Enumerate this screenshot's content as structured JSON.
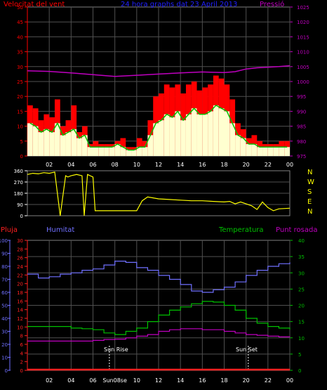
{
  "header": {
    "left_label": "Velocitat del vent",
    "title": "24 hora graphs dat 23 April 2013",
    "right_label": "Pressió"
  },
  "legend": {
    "rain": "Pluja",
    "humidity": "Humitat",
    "temperature": "Temperatura",
    "dewpoint": "Punt rosada"
  },
  "annotations": {
    "sunrise": "Sun Rise",
    "sunset": "Sun Set"
  },
  "colors": {
    "wind_speed": "#ff0000",
    "wind_avg": "#00c000",
    "wind_light": "#ffffd0",
    "pressure": "#c000c0",
    "direction": "#ffff00",
    "rain": "#ff2020",
    "humidity": "#7070ff",
    "temperature": "#00c000",
    "dewpoint": "#c000c0",
    "axis_left": "#ff0000",
    "axis_right": "#c000c0"
  },
  "chart_data": [
    {
      "type": "line",
      "title": "",
      "ylabel_left": "Velocitat del vent",
      "ylabel_right": "Pressió",
      "x_tick_labels": [
        "02",
        "04",
        "06",
        "08",
        "10",
        "12",
        "14",
        "16",
        "18",
        "20",
        "22",
        "00"
      ],
      "x_hours": [
        2,
        4,
        6,
        8,
        10,
        12,
        14,
        16,
        18,
        20,
        22,
        24
      ],
      "ylim_left": [
        0,
        50
      ],
      "yticks_left": [
        0,
        5,
        10,
        15,
        20,
        25,
        30,
        35,
        40,
        45,
        50
      ],
      "ylim_right": [
        975,
        1025
      ],
      "yticks_right": [
        975,
        980,
        985,
        990,
        995,
        1000,
        1005,
        1010,
        1015,
        1020,
        1025
      ],
      "series": [
        {
          "name": "Gust",
          "axis": "left",
          "x": [
            0.5,
            1,
            1.5,
            2,
            2.5,
            3,
            3.5,
            4,
            4.5,
            5,
            5.5,
            6,
            6.5,
            7,
            7.5,
            8,
            8.5,
            9,
            9.5,
            10,
            10.5,
            11,
            11.5,
            12,
            12.5,
            13,
            13.5,
            14,
            14.5,
            15,
            15.5,
            16,
            16.5,
            17,
            17.5,
            18,
            18.5,
            19,
            19.5,
            20,
            20.5,
            21,
            21.5,
            22,
            22.5,
            23,
            23.5,
            24
          ],
          "values": [
            17,
            16,
            12,
            14,
            13,
            19,
            10,
            12,
            17,
            8,
            10,
            4,
            5,
            4,
            4,
            4,
            5,
            6,
            3,
            3,
            6,
            5,
            12,
            20,
            21,
            24,
            23,
            24,
            21,
            24,
            25,
            22,
            23,
            24,
            27,
            26,
            24,
            19,
            11,
            9,
            6,
            7,
            5,
            4,
            4,
            4,
            5,
            5
          ]
        },
        {
          "name": "Average",
          "axis": "left",
          "x": [
            0.5,
            1,
            1.5,
            2,
            2.5,
            3,
            3.5,
            4,
            4.5,
            5,
            5.5,
            6,
            6.5,
            7,
            7.5,
            8,
            8.5,
            9,
            9.5,
            10,
            10.5,
            11,
            11.5,
            12,
            12.5,
            13,
            13.5,
            14,
            14.5,
            15,
            15.5,
            16,
            16.5,
            17,
            17.5,
            18,
            18.5,
            19,
            19.5,
            20,
            20.5,
            21,
            21.5,
            22,
            22.5,
            23,
            23.5,
            24
          ],
          "values": [
            11,
            10,
            8,
            9,
            8,
            11,
            7,
            8,
            9,
            6,
            7,
            3,
            3,
            3,
            3,
            3,
            4,
            3,
            2,
            2,
            3,
            3,
            7,
            11,
            12,
            14,
            13,
            15,
            12,
            14,
            16,
            14,
            14,
            15,
            17,
            16,
            15,
            11,
            7,
            6,
            4,
            4,
            3,
            3,
            3,
            3,
            3,
            3
          ]
        },
        {
          "name": "Pressure",
          "axis": "right",
          "x": [
            0,
            2,
            4,
            6,
            8,
            10,
            12,
            14,
            16,
            17,
            18,
            19,
            20,
            21,
            22,
            23,
            24
          ],
          "values": [
            1003.6,
            1003.4,
            1002.9,
            1002.3,
            1001.7,
            1002.1,
            1002.5,
            1002.9,
            1003.2,
            1003.1,
            1003.0,
            1003.3,
            1004.2,
            1004.6,
            1004.8,
            1005.0,
            1005.3
          ]
        }
      ]
    },
    {
      "type": "line",
      "title": "",
      "ylabel_right_letters": [
        "N",
        "W",
        "S",
        "E",
        "N"
      ],
      "x_tick_labels": [
        "02",
        "04",
        "06",
        "08",
        "10",
        "12",
        "14",
        "16",
        "18",
        "20",
        "22",
        "00"
      ],
      "ylim": [
        0,
        360
      ],
      "yticks": [
        0,
        90,
        180,
        270,
        360
      ],
      "yticks_labels": [
        "0",
        "90",
        "180",
        "270",
        "360"
      ],
      "series": [
        {
          "name": "Wind direction",
          "x": [
            0,
            0.5,
            1,
            1.5,
            2,
            2.5,
            3,
            3.5,
            3.7,
            4,
            4.5,
            5,
            5.2,
            5.5,
            6,
            6.2,
            8,
            9,
            10,
            10.5,
            11,
            12,
            13,
            14,
            15,
            16,
            17,
            18,
            18.5,
            19,
            19.5,
            20,
            20.5,
            21,
            21.5,
            22,
            22.5,
            23,
            24
          ],
          "values": [
            330,
            340,
            335,
            345,
            340,
            350,
            0,
            320,
            310,
            320,
            330,
            320,
            0,
            330,
            310,
            40,
            40,
            40,
            40,
            120,
            150,
            135,
            130,
            125,
            120,
            120,
            115,
            110,
            115,
            95,
            110,
            95,
            80,
            50,
            110,
            65,
            40,
            55,
            60
          ]
        }
      ]
    },
    {
      "type": "line",
      "title": "",
      "ylabel_far_left": "Pluja",
      "ylabel_left": "Humitat",
      "ylabel_right": "Temperatura",
      "ylabel_far_right": "Punt rosada",
      "x_tick_labels": [
        "02",
        "04",
        "06",
        "Sun08se",
        "10",
        "12",
        "14",
        "16",
        "18",
        "20",
        "22",
        "00"
      ],
      "ylim_humidity": [
        0,
        100
      ],
      "yticks_humidity": [
        0,
        10,
        20,
        30,
        40,
        50,
        60,
        70,
        80,
        90,
        100
      ],
      "ylim_rain": [
        0,
        30
      ],
      "yticks_rain": [
        0,
        2,
        4,
        6,
        8,
        10,
        12,
        14,
        16,
        18,
        20,
        22,
        24,
        26,
        28,
        30
      ],
      "ylim_temp": [
        0,
        40
      ],
      "yticks_temp": [
        0,
        5,
        10,
        15,
        20,
        25,
        30,
        35,
        40
      ],
      "series": [
        {
          "name": "Humitat",
          "axis": "humidity",
          "x": [
            0,
            1,
            2,
            3,
            4,
            5,
            6,
            7,
            8,
            9,
            10,
            11,
            12,
            13,
            14,
            15,
            16,
            17,
            18,
            19,
            20,
            21,
            22,
            23,
            24
          ],
          "values": [
            74,
            71,
            72,
            74,
            75,
            77,
            78,
            81,
            84,
            83,
            79,
            77,
            73,
            70,
            66,
            61,
            60,
            62,
            64,
            68,
            73,
            77,
            80,
            82,
            83
          ]
        },
        {
          "name": "Temperatura",
          "axis": "temp",
          "x": [
            0,
            1,
            2,
            3,
            4,
            5,
            6,
            7,
            8,
            9,
            10,
            11,
            12,
            13,
            14,
            15,
            16,
            17,
            18,
            19,
            20,
            21,
            22,
            23,
            24
          ],
          "values": [
            13.5,
            13.5,
            13.5,
            13.5,
            13,
            12.8,
            12.5,
            11.5,
            11.0,
            12,
            13,
            15,
            17,
            18.5,
            19.5,
            20.5,
            21.2,
            21.0,
            20,
            18.5,
            16,
            14.5,
            13.5,
            13.0,
            12.6
          ]
        },
        {
          "name": "Punt rosada",
          "axis": "temp",
          "x": [
            0,
            1,
            2,
            3,
            4,
            5,
            6,
            7,
            8,
            9,
            10,
            11,
            12,
            13,
            14,
            15,
            16,
            17,
            18,
            19,
            20,
            21,
            22,
            23,
            24
          ],
          "values": [
            9,
            9,
            9,
            9,
            9,
            9,
            9.2,
            9.5,
            9.6,
            10,
            10.5,
            11,
            12,
            12.5,
            12.8,
            12.8,
            12.5,
            12.5,
            12,
            11.5,
            11,
            10.8,
            10.5,
            10.3,
            10.2
          ]
        },
        {
          "name": "Pluja",
          "axis": "rain",
          "x": [
            0,
            24
          ],
          "values": [
            0,
            0
          ]
        }
      ],
      "markers": [
        {
          "label": "Sun Rise",
          "x": 7.5
        },
        {
          "label": "Sun Set",
          "x": 20.2
        }
      ]
    }
  ]
}
